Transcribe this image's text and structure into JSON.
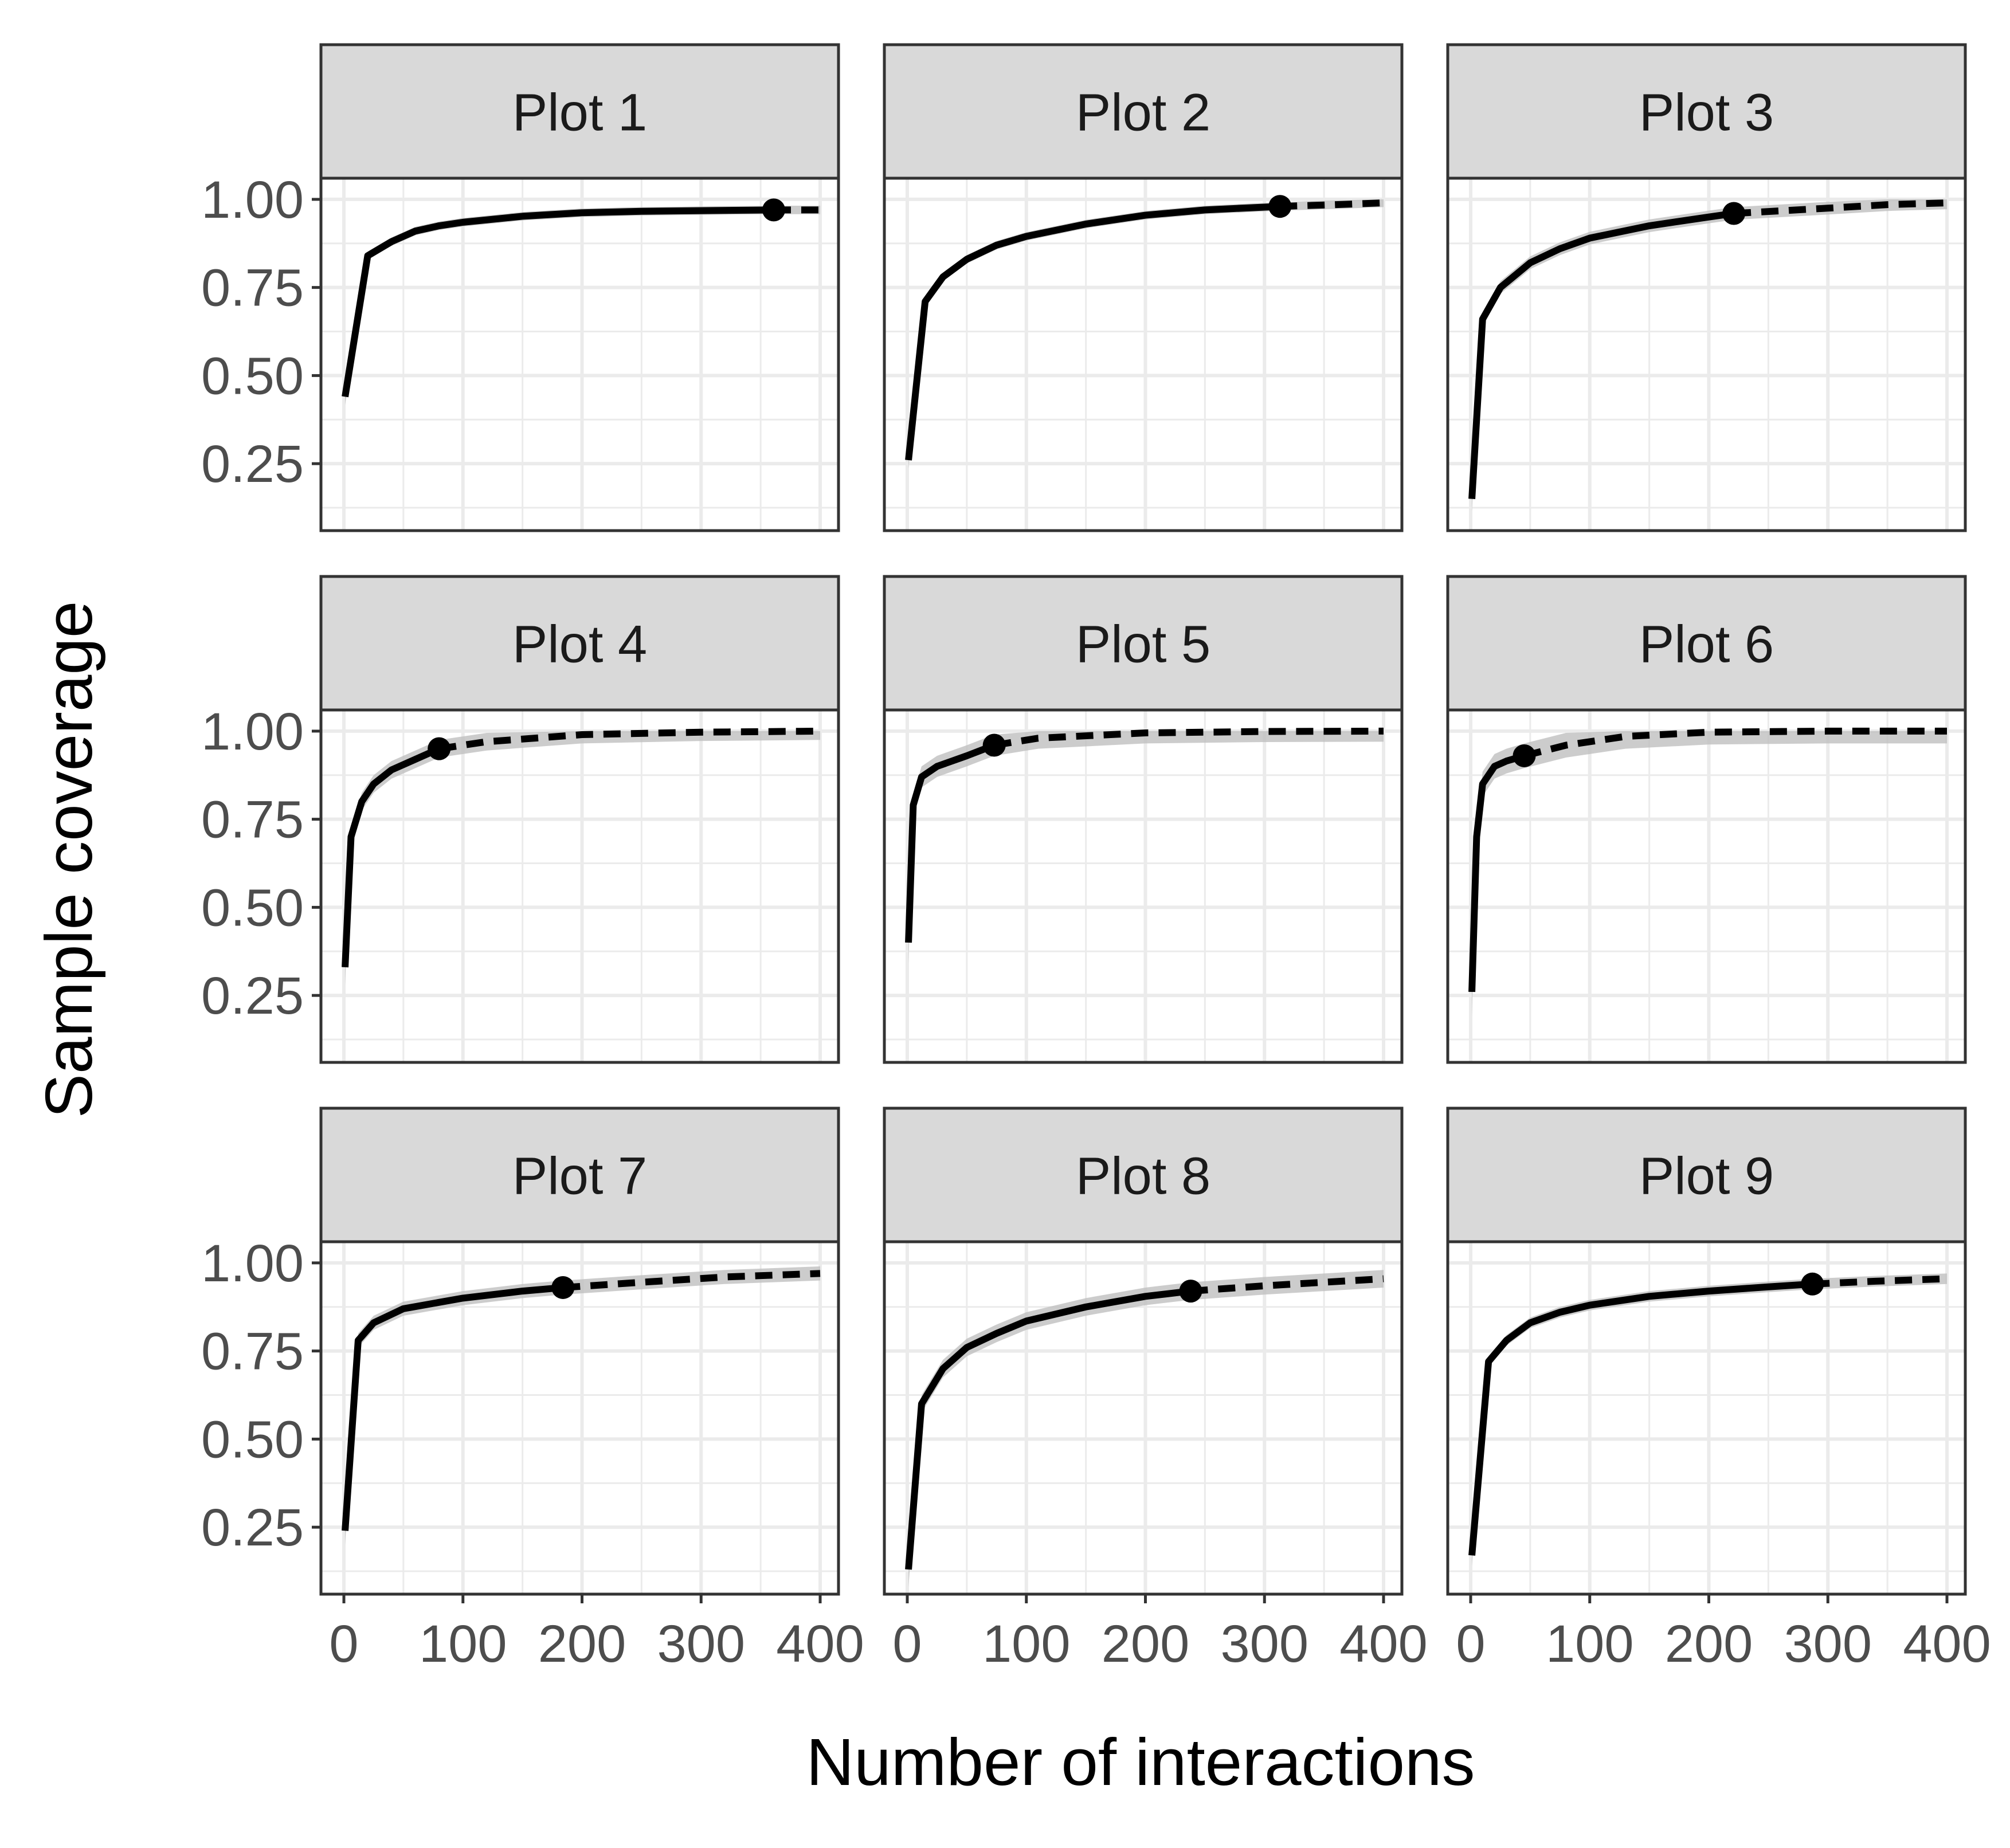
{
  "chart_data": {
    "type": "line",
    "layout": "facet-grid-3x3",
    "xlabel": "Number of interactions",
    "ylabel": "Sample coverage",
    "xlim": [
      0,
      400
    ],
    "ylim": [
      0.06,
      1.06
    ],
    "xticks": [
      0,
      100,
      200,
      300,
      400
    ],
    "xtick_labels": [
      "0",
      "100",
      "200",
      "300",
      "400"
    ],
    "yticks": [
      0.25,
      0.5,
      0.75,
      1.0
    ],
    "ytick_labels": [
      "0.25",
      "0.50",
      "0.75",
      "1.00"
    ],
    "grid": true,
    "legend": "none",
    "line_styles": {
      "rarefaction": "solid",
      "extrapolation": "dashed"
    },
    "colors": {
      "line": "#000000",
      "band": "#bfbfbf",
      "strip": "#d9d9d9",
      "grid": "#ebebeb",
      "border": "#333333"
    },
    "panels": [
      {
        "title": "Plot 1",
        "observed": [
          361,
          0.97
        ],
        "rarefaction": [
          [
            1,
            0.44
          ],
          [
            20,
            0.84
          ],
          [
            40,
            0.88
          ],
          [
            60,
            0.91
          ],
          [
            80,
            0.925
          ],
          [
            100,
            0.935
          ],
          [
            150,
            0.952
          ],
          [
            200,
            0.962
          ],
          [
            250,
            0.966
          ],
          [
            300,
            0.968
          ],
          [
            361,
            0.97
          ]
        ],
        "extrapolation": [
          [
            361,
            0.97
          ],
          [
            400,
            0.97
          ]
        ],
        "band": 0.012
      },
      {
        "title": "Plot 2",
        "observed": [
          313,
          0.98
        ],
        "rarefaction": [
          [
            1,
            0.26
          ],
          [
            15,
            0.71
          ],
          [
            30,
            0.78
          ],
          [
            50,
            0.83
          ],
          [
            75,
            0.87
          ],
          [
            100,
            0.895
          ],
          [
            150,
            0.93
          ],
          [
            200,
            0.955
          ],
          [
            250,
            0.97
          ],
          [
            313,
            0.98
          ]
        ],
        "extrapolation": [
          [
            313,
            0.98
          ],
          [
            360,
            0.985
          ],
          [
            400,
            0.99
          ]
        ],
        "band": 0.012
      },
      {
        "title": "Plot 3",
        "observed": [
          221,
          0.96
        ],
        "rarefaction": [
          [
            1,
            0.15
          ],
          [
            10,
            0.66
          ],
          [
            25,
            0.75
          ],
          [
            50,
            0.82
          ],
          [
            75,
            0.86
          ],
          [
            100,
            0.89
          ],
          [
            150,
            0.925
          ],
          [
            200,
            0.95
          ],
          [
            221,
            0.96
          ]
        ],
        "extrapolation": [
          [
            221,
            0.96
          ],
          [
            300,
            0.975
          ],
          [
            350,
            0.985
          ],
          [
            400,
            0.99
          ]
        ],
        "band": 0.018
      },
      {
        "title": "Plot 4",
        "observed": [
          80,
          0.95
        ],
        "rarefaction": [
          [
            1,
            0.33
          ],
          [
            6,
            0.7
          ],
          [
            15,
            0.8
          ],
          [
            25,
            0.85
          ],
          [
            40,
            0.89
          ],
          [
            60,
            0.92
          ],
          [
            80,
            0.95
          ]
        ],
        "extrapolation": [
          [
            80,
            0.95
          ],
          [
            120,
            0.97
          ],
          [
            200,
            0.99
          ],
          [
            300,
            0.997
          ],
          [
            400,
            1.0
          ]
        ],
        "band": 0.025
      },
      {
        "title": "Plot 5",
        "observed": [
          73,
          0.96
        ],
        "rarefaction": [
          [
            1,
            0.4
          ],
          [
            5,
            0.79
          ],
          [
            12,
            0.87
          ],
          [
            25,
            0.9
          ],
          [
            50,
            0.93
          ],
          [
            73,
            0.96
          ]
        ],
        "extrapolation": [
          [
            73,
            0.96
          ],
          [
            110,
            0.98
          ],
          [
            200,
            0.995
          ],
          [
            300,
            0.999
          ],
          [
            400,
            1.0
          ]
        ],
        "band": 0.03
      },
      {
        "title": "Plot 6",
        "observed": [
          45,
          0.93
        ],
        "rarefaction": [
          [
            1,
            0.26
          ],
          [
            5,
            0.7
          ],
          [
            10,
            0.85
          ],
          [
            20,
            0.9
          ],
          [
            30,
            0.915
          ],
          [
            45,
            0.93
          ]
        ],
        "extrapolation": [
          [
            45,
            0.93
          ],
          [
            80,
            0.96
          ],
          [
            130,
            0.985
          ],
          [
            200,
            0.997
          ],
          [
            300,
            1.0
          ],
          [
            400,
            1.0
          ]
        ],
        "band": 0.035
      },
      {
        "title": "Plot 7",
        "observed": [
          184,
          0.93
        ],
        "rarefaction": [
          [
            1,
            0.24
          ],
          [
            12,
            0.78
          ],
          [
            25,
            0.83
          ],
          [
            50,
            0.87
          ],
          [
            75,
            0.885
          ],
          [
            100,
            0.9
          ],
          [
            150,
            0.92
          ],
          [
            184,
            0.93
          ]
        ],
        "extrapolation": [
          [
            184,
            0.93
          ],
          [
            250,
            0.945
          ],
          [
            320,
            0.96
          ],
          [
            400,
            0.97
          ]
        ],
        "band": 0.02
      },
      {
        "title": "Plot 8",
        "observed": [
          238,
          0.92
        ],
        "rarefaction": [
          [
            1,
            0.13
          ],
          [
            12,
            0.6
          ],
          [
            30,
            0.7
          ],
          [
            50,
            0.76
          ],
          [
            75,
            0.8
          ],
          [
            100,
            0.835
          ],
          [
            150,
            0.875
          ],
          [
            200,
            0.905
          ],
          [
            238,
            0.92
          ]
        ],
        "extrapolation": [
          [
            238,
            0.92
          ],
          [
            300,
            0.935
          ],
          [
            350,
            0.945
          ],
          [
            400,
            0.955
          ]
        ],
        "band": 0.025
      },
      {
        "title": "Plot 9",
        "observed": [
          287,
          0.94
        ],
        "rarefaction": [
          [
            1,
            0.17
          ],
          [
            15,
            0.72
          ],
          [
            30,
            0.78
          ],
          [
            50,
            0.83
          ],
          [
            75,
            0.86
          ],
          [
            100,
            0.88
          ],
          [
            150,
            0.905
          ],
          [
            200,
            0.92
          ],
          [
            250,
            0.932
          ],
          [
            287,
            0.94
          ]
        ],
        "extrapolation": [
          [
            287,
            0.94
          ],
          [
            340,
            0.948
          ],
          [
            400,
            0.955
          ]
        ],
        "band": 0.015
      }
    ]
  }
}
